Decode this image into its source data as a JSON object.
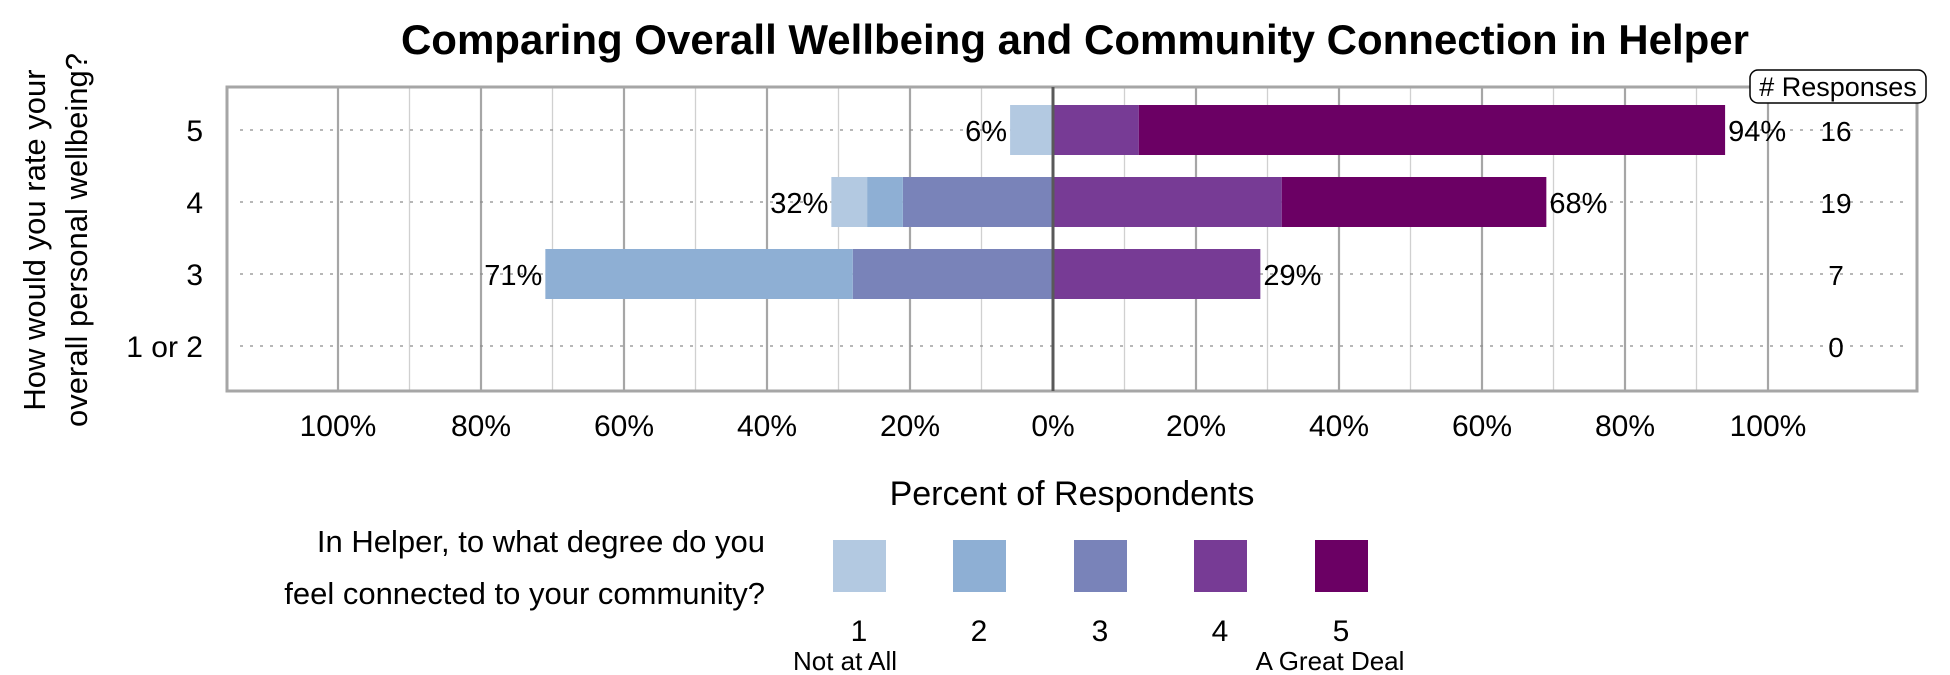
{
  "chart_data": {
    "type": "bar",
    "orientation": "horizontal-diverging",
    "title": "Comparing Overall Wellbeing and Community Connection in Helper",
    "ylabel_lines": [
      "How would you rate your",
      "overall personal wellbeing?"
    ],
    "xlabel": "Percent of Respondents",
    "xlim": [
      -100,
      100
    ],
    "x_ticks": [
      "100%",
      "80%",
      "60%",
      "40%",
      "20%",
      "0%",
      "20%",
      "40%",
      "60%",
      "80%",
      "100%"
    ],
    "grid": true,
    "categories": [
      "5",
      "4",
      "3",
      "1 or 2"
    ],
    "responses_header": "# Responses",
    "responses": [
      "16",
      "19",
      "7",
      "0"
    ],
    "left_labels": [
      "6%",
      "32%",
      "71%",
      ""
    ],
    "right_labels": [
      "94%",
      "68%",
      "29%",
      ""
    ],
    "series": [
      {
        "name": "1",
        "color": "#b3c9e1",
        "values": [
          6,
          5,
          0,
          0
        ]
      },
      {
        "name": "2",
        "color": "#8eafd4",
        "values": [
          0,
          5,
          43,
          0
        ]
      },
      {
        "name": "3",
        "color": "#7983b9",
        "values": [
          0,
          21,
          28,
          0
        ]
      },
      {
        "name": "4",
        "color": "#773b95",
        "values": [
          12,
          32,
          29,
          0
        ]
      },
      {
        "name": "5",
        "color": "#6b0064",
        "values": [
          82,
          37,
          0,
          0
        ]
      }
    ],
    "negative_series": [
      "1",
      "2",
      "3"
    ],
    "positive_series": [
      "4",
      "5"
    ],
    "legend": {
      "title_lines": [
        "In Helper, to what degree do you",
        "feel connected to your community?"
      ],
      "anchor_low": "Not at All",
      "anchor_high": "A Great Deal",
      "placement": "bottom"
    }
  }
}
